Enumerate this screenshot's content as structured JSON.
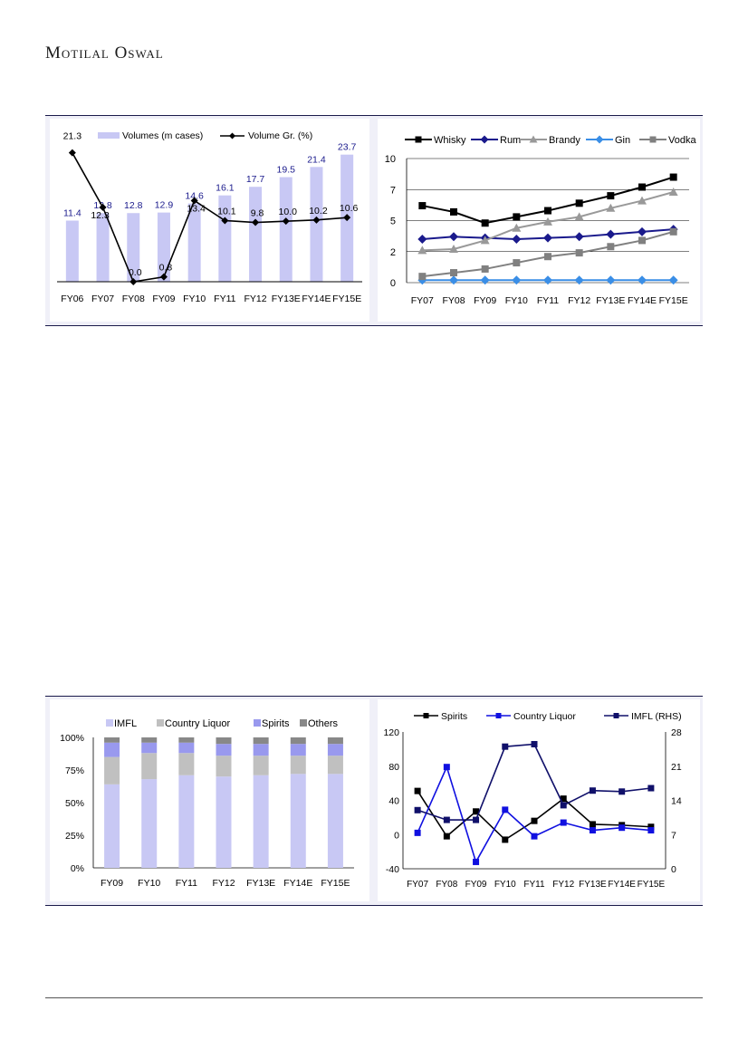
{
  "header": {
    "brand": "Motilal Oswal"
  },
  "chart_data": [
    {
      "id": "volumes",
      "type": "bar",
      "categories": [
        "FY06",
        "FY07",
        "FY08",
        "FY09",
        "FY10",
        "FY11",
        "FY12",
        "FY13E",
        "FY14E",
        "FY15E"
      ],
      "legend": [
        "Volumes (m cases)",
        "Volume Gr. (%)"
      ],
      "series": [
        {
          "name": "Volumes (m cases)",
          "kind": "bar",
          "color": "#c8c8f4",
          "values": [
            11.4,
            12.8,
            12.8,
            12.9,
            14.6,
            16.1,
            17.7,
            19.5,
            21.4,
            23.7
          ],
          "labels": [
            "11.4",
            "12.8",
            "12.8",
            "12.9",
            "14.6",
            "16.1",
            "17.7",
            "19.5",
            "21.4",
            "23.7"
          ]
        },
        {
          "name": "Volume Gr. (%)",
          "kind": "line",
          "color": "#000000",
          "values": [
            21.3,
            12.3,
            0.0,
            0.8,
            13.4,
            10.1,
            9.8,
            10.0,
            10.2,
            10.6
          ],
          "labels": [
            "21.3",
            "12.3",
            "0.0",
            "0.8",
            "13.4",
            "10.1",
            "9.8",
            "10.0",
            "10.2",
            "10.6"
          ]
        }
      ],
      "bar_ylim": [
        0,
        25
      ],
      "line_ylim": [
        0,
        22
      ]
    },
    {
      "id": "segments",
      "type": "line",
      "categories": [
        "FY07",
        "FY08",
        "FY09",
        "FY10",
        "FY11",
        "FY12",
        "FY13E",
        "FY14E",
        "FY15E"
      ],
      "ylim": [
        0,
        10
      ],
      "yticks": [
        "0",
        "2",
        "5",
        "7",
        "10"
      ],
      "ytick_values": [
        0,
        2.5,
        5,
        7.5,
        10
      ],
      "series": [
        {
          "name": "Whisky",
          "color": "#000000",
          "marker": "square",
          "values": [
            6.2,
            5.7,
            4.8,
            5.3,
            5.8,
            6.4,
            7.0,
            7.7,
            8.5
          ]
        },
        {
          "name": "Rum",
          "color": "#1a1a8c",
          "marker": "diamond",
          "values": [
            3.5,
            3.7,
            3.6,
            3.5,
            3.6,
            3.7,
            3.9,
            4.1,
            4.3
          ]
        },
        {
          "name": "Brandy",
          "color": "#999999",
          "marker": "triangle",
          "values": [
            2.6,
            2.7,
            3.4,
            4.4,
            4.9,
            5.3,
            6.0,
            6.6,
            7.3
          ]
        },
        {
          "name": "Gin",
          "color": "#3a8ee6",
          "marker": "diamond",
          "values": [
            0.2,
            0.2,
            0.2,
            0.2,
            0.2,
            0.2,
            0.2,
            0.2,
            0.2
          ]
        },
        {
          "name": "Vodka",
          "color": "#808080",
          "marker": "square",
          "values": [
            0.5,
            0.8,
            1.1,
            1.6,
            2.1,
            2.4,
            2.9,
            3.4,
            4.1
          ]
        }
      ]
    },
    {
      "id": "mix",
      "type": "bar",
      "stacked": true,
      "categories": [
        "FY09",
        "FY10",
        "FY11",
        "FY12",
        "FY13E",
        "FY14E",
        "FY15E"
      ],
      "yticks": [
        "0%",
        "25%",
        "50%",
        "75%",
        "100%"
      ],
      "ytick_values": [
        0,
        25,
        50,
        75,
        100
      ],
      "series": [
        {
          "name": "IMFL",
          "color": "#c8c8f4",
          "values": [
            64,
            68,
            71,
            70,
            71,
            72,
            72
          ]
        },
        {
          "name": "Country Liquor",
          "color": "#c0c0c0",
          "values": [
            21,
            20,
            17,
            16,
            15,
            14,
            14
          ]
        },
        {
          "name": "Spirits",
          "color": "#9999ee",
          "values": [
            11,
            8,
            8,
            9,
            9,
            9,
            9
          ]
        },
        {
          "name": "Others",
          "color": "#888888",
          "values": [
            4,
            4,
            4,
            5,
            5,
            5,
            5
          ]
        }
      ]
    },
    {
      "id": "growth",
      "type": "line",
      "categories": [
        "FY07",
        "FY08",
        "FY09",
        "FY10",
        "FY11",
        "FY12",
        "FY13E",
        "FY14E",
        "FY15E"
      ],
      "ylim": [
        -40,
        120
      ],
      "yticks": [
        "-40",
        "0",
        "40",
        "80",
        "120"
      ],
      "ytick_values": [
        -40,
        0,
        40,
        80,
        120
      ],
      "y2lim": [
        0,
        28
      ],
      "y2ticks": [
        "0",
        "7",
        "14",
        "21",
        "28"
      ],
      "y2tick_values": [
        0,
        7,
        14,
        21,
        28
      ],
      "series": [
        {
          "name": "Spirits",
          "color": "#000000",
          "axis": "left",
          "values": [
            51,
            -2,
            27,
            -6,
            16,
            42,
            12,
            11,
            9
          ]
        },
        {
          "name": "Country Liquor",
          "color": "#1010e0",
          "axis": "left",
          "values": [
            2,
            79,
            -32,
            29,
            -2,
            14,
            5,
            8,
            5
          ]
        },
        {
          "name": "IMFL (RHS)",
          "color": "#10106a",
          "axis": "right",
          "values": [
            12,
            10,
            10,
            25,
            25.5,
            13,
            16,
            15.8,
            16.5
          ]
        }
      ]
    }
  ]
}
